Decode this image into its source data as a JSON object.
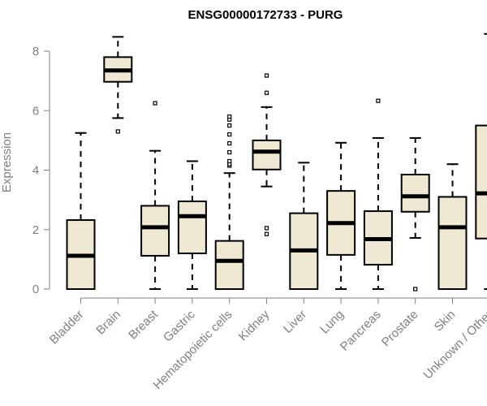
{
  "chart_data": {
    "type": "boxplot",
    "title": "ENSG00000172733 - PURG",
    "xlabel": "",
    "ylabel": "Expression",
    "ylim": [
      0,
      8.6
    ],
    "yticks": [
      0,
      2,
      4,
      6,
      8
    ],
    "box_fill": "#efe8d2",
    "box_stroke": "#000000",
    "categories": [
      "Bladder",
      "Brain",
      "Breast",
      "Gastric",
      "Hematopoietic cells",
      "Kidney",
      "Liver",
      "Lung",
      "Pancreas",
      "Prostate",
      "Skin",
      "Unknown / Other"
    ],
    "boxes": [
      {
        "q1": 0.0,
        "median": 1.12,
        "q3": 2.32,
        "whisker_low": 0.0,
        "whisker_high": 5.25,
        "outliers": []
      },
      {
        "q1": 6.97,
        "median": 7.35,
        "q3": 7.8,
        "whisker_low": 5.75,
        "whisker_high": 8.48,
        "outliers": [
          5.3
        ]
      },
      {
        "q1": 1.12,
        "median": 2.08,
        "q3": 2.8,
        "whisker_low": 0.0,
        "whisker_high": 4.65,
        "outliers": [
          6.25
        ]
      },
      {
        "q1": 1.2,
        "median": 2.45,
        "q3": 2.95,
        "whisker_low": 0.0,
        "whisker_high": 4.3,
        "outliers": []
      },
      {
        "q1": 0.0,
        "median": 0.95,
        "q3": 1.62,
        "whisker_low": 0.0,
        "whisker_high": 3.9,
        "outliers": [
          4.15,
          4.2,
          4.3,
          4.6,
          4.9,
          5.2,
          5.5,
          5.7,
          5.8
        ]
      },
      {
        "q1": 4.02,
        "median": 4.62,
        "q3": 5.0,
        "whisker_low": 3.45,
        "whisker_high": 6.12,
        "outliers": [
          1.85,
          2.05,
          6.6,
          7.18
        ]
      },
      {
        "q1": 0.0,
        "median": 1.3,
        "q3": 2.55,
        "whisker_low": 0.0,
        "whisker_high": 4.25,
        "outliers": []
      },
      {
        "q1": 1.15,
        "median": 2.22,
        "q3": 3.3,
        "whisker_low": 0.0,
        "whisker_high": 4.92,
        "outliers": []
      },
      {
        "q1": 0.82,
        "median": 1.68,
        "q3": 2.62,
        "whisker_low": 0.0,
        "whisker_high": 5.08,
        "outliers": [
          6.33
        ]
      },
      {
        "q1": 2.6,
        "median": 3.12,
        "q3": 3.85,
        "whisker_low": 1.72,
        "whisker_high": 5.08,
        "outliers": [
          0.0
        ]
      },
      {
        "q1": 0.0,
        "median": 2.08,
        "q3": 3.1,
        "whisker_low": 0.0,
        "whisker_high": 4.2,
        "outliers": []
      },
      {
        "q1": 1.7,
        "median": 3.22,
        "q3": 5.5,
        "whisker_low": 0.0,
        "whisker_high": 8.58,
        "outliers": []
      }
    ]
  }
}
